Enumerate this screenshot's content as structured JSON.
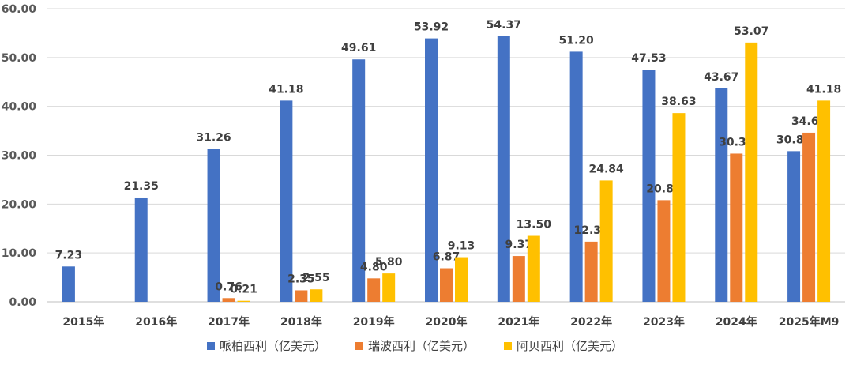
{
  "chart_data": {
    "type": "bar",
    "categories": [
      "2015年",
      "2016年",
      "2017年",
      "2018年",
      "2019年",
      "2020年",
      "2021年",
      "2022年",
      "2023年",
      "2024年",
      "2025年M9"
    ],
    "series": [
      {
        "name": "哌柏西利（亿美元）",
        "color": "#4472c4",
        "values": [
          7.23,
          21.35,
          31.26,
          41.18,
          49.61,
          53.92,
          54.37,
          51.2,
          47.53,
          43.67,
          30.83
        ],
        "labels": [
          "7.23",
          "21.35",
          "31.26",
          "41.18",
          "49.61",
          "53.92",
          "54.37",
          "51.20",
          "47.53",
          "43.67",
          "30.83"
        ]
      },
      {
        "name": "瑞波西利（亿美元）",
        "color": "#ed7d31",
        "values": [
          null,
          null,
          0.76,
          2.35,
          4.8,
          6.87,
          9.37,
          12.31,
          20.8,
          30.33,
          34.62
        ],
        "labels": [
          "",
          "",
          "0.76",
          "2.35",
          "4.80",
          "6.87",
          "9.37",
          "12.31",
          "20.80",
          "30.33",
          "34.62"
        ]
      },
      {
        "name": "阿贝西利（亿美元）",
        "color": "#ffc000",
        "values": [
          null,
          null,
          0.21,
          2.55,
          5.8,
          9.13,
          13.5,
          24.84,
          38.63,
          53.07,
          41.18
        ],
        "labels": [
          "",
          "",
          "0.21",
          "2.55",
          "5.80",
          "9.13",
          "13.50",
          "24.84",
          "38.63",
          "53.07",
          "41.18"
        ]
      }
    ],
    "yticks": [
      "0.00",
      "10.00",
      "20.00",
      "30.00",
      "40.00",
      "50.00",
      "60.00"
    ],
    "ylim": [
      0,
      60
    ],
    "grid": true,
    "legend": "bottom"
  }
}
